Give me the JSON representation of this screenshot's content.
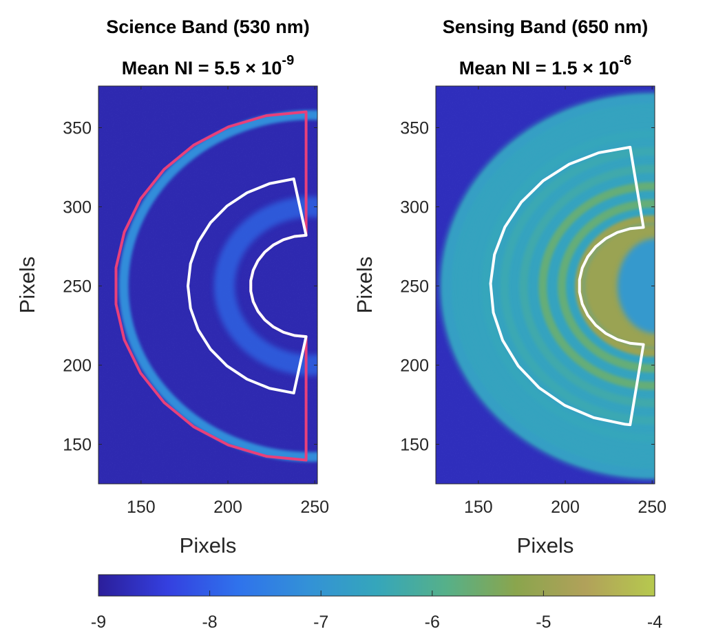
{
  "chart_data": [
    {
      "type": "heatmap",
      "title": "Science Band (530 nm)",
      "subtitle_prefix": "Mean NI = 5.5 ×",
      "subtitle_base": "10",
      "subtitle_exp": "-9",
      "xlabel": "Pixels",
      "ylabel": "Pixels",
      "xlim": [
        125.5,
        251.5
      ],
      "ylim": [
        125,
        376.3
      ],
      "xticks": [
        150,
        200,
        250
      ],
      "yticks": [
        150,
        200,
        250,
        300,
        350
      ],
      "pattern": {
        "center": [
          248,
          250
        ],
        "ring_radii": [
          108
        ],
        "ring_level": -7.2,
        "background_level": -8.8,
        "inner_glow_level": -7.8
      },
      "regions": [
        {
          "name": "outer-region",
          "color": "#e8407a",
          "center": [
            245,
            250
          ],
          "r_inner": 32,
          "r_outer": 110,
          "angle_start": 90,
          "angle_end": 270
        },
        {
          "name": "dark-hole",
          "color": "#ffffff",
          "center": [
            245,
            250
          ],
          "r_inner": 32,
          "r_outer": 68,
          "angle_start": 96,
          "angle_end": 264
        }
      ]
    },
    {
      "type": "heatmap",
      "title": "Sensing Band (650 nm)",
      "subtitle_prefix": "Mean NI = 1.5 ×",
      "subtitle_base": "10",
      "subtitle_exp": "-6",
      "xlabel": "Pixels",
      "ylabel": "Pixels",
      "xlim": [
        125.5,
        251.5
      ],
      "ylim": [
        125,
        376.3
      ],
      "xticks": [
        150,
        200,
        250
      ],
      "yticks": [
        150,
        200,
        250,
        300,
        350
      ],
      "pattern": {
        "center": [
          250,
          250
        ],
        "ring_radii": [
          42,
          52,
          63,
          74,
          85,
          96,
          108,
          118
        ],
        "ring_level": -6.0,
        "background_level": -8.7
      },
      "regions": [
        {
          "name": "dark-hole",
          "color": "#ffffff",
          "center": [
            245,
            250
          ],
          "r_inner": 37,
          "r_outer": 88,
          "angle_start": 95,
          "angle_end": 265
        }
      ]
    }
  ],
  "colorbar": {
    "range": [
      -9,
      -4
    ],
    "ticks": [
      "-9",
      "-8",
      "-7",
      "-6",
      "-5",
      "-4"
    ],
    "colors": [
      "#2b1e9a",
      "#3440e0",
      "#2f72ec",
      "#3391d7",
      "#35a6bb",
      "#56b089",
      "#8aa54d",
      "#b1a15a",
      "#b6c94e"
    ]
  }
}
